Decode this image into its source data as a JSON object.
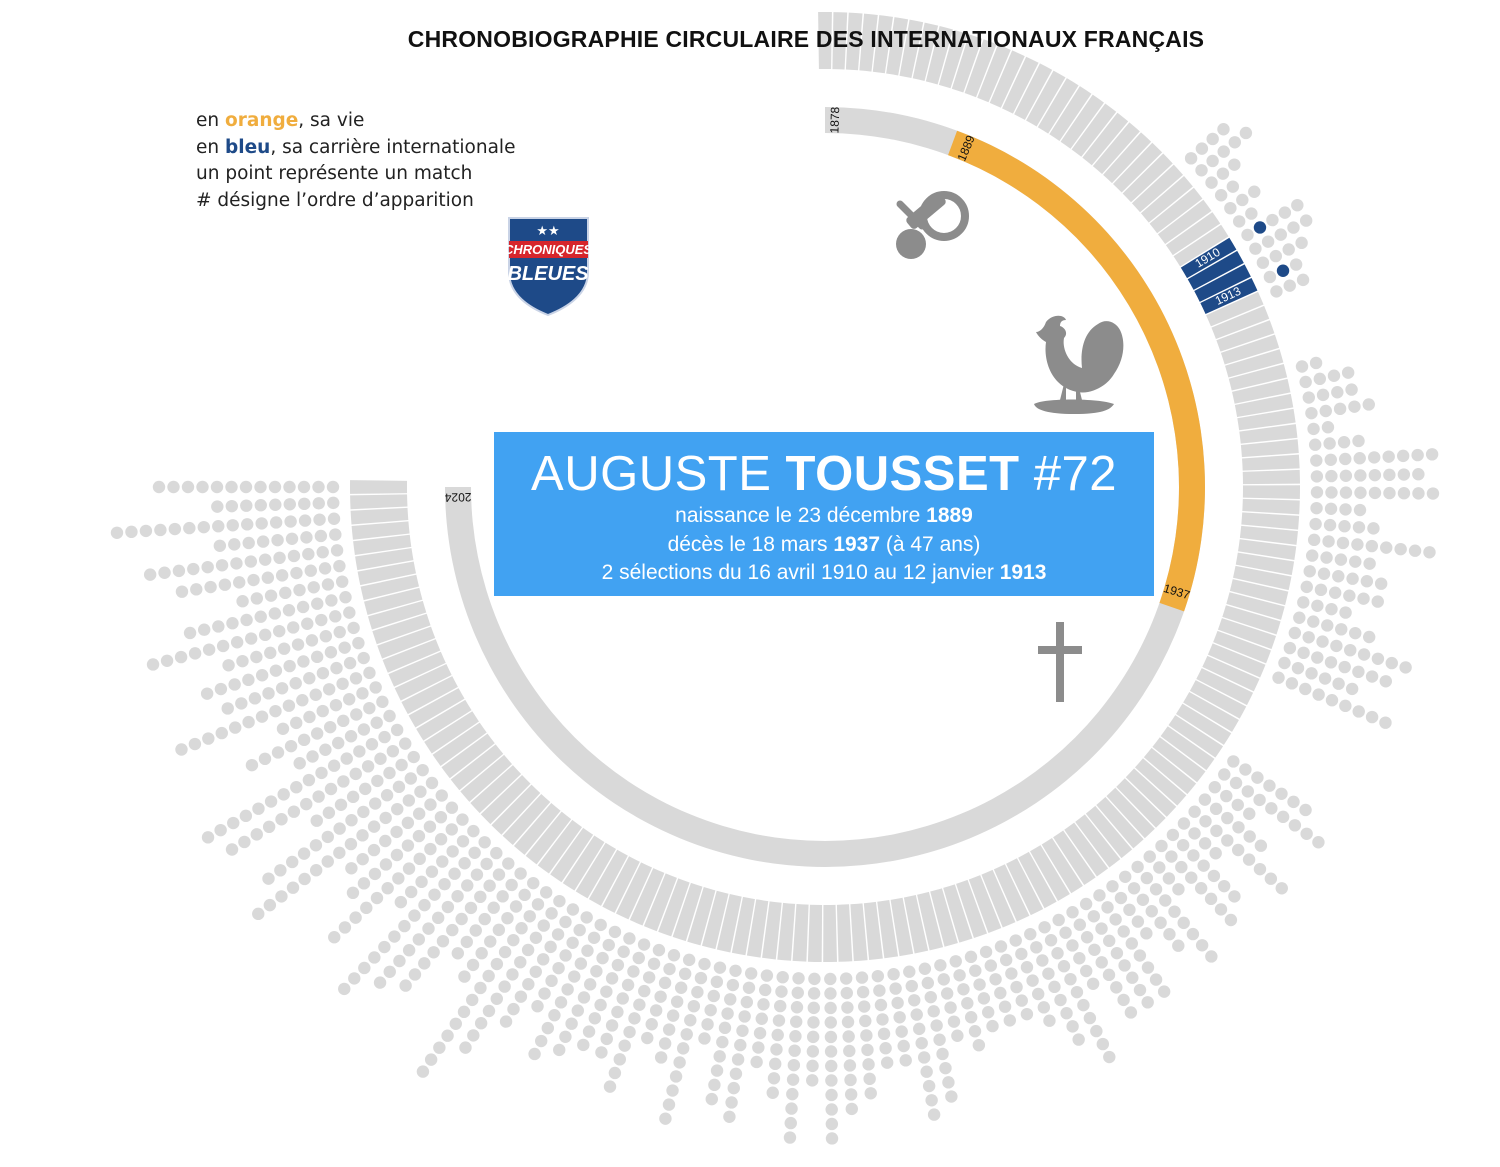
{
  "title": "CHRONOBIOGRAPHIE CIRCULAIRE DES INTERNATIONAUX FRANÇAIS",
  "legend": {
    "line1_prefix": "en ",
    "line1_color": "orange",
    "line1_suffix": ", sa vie",
    "line2_prefix": "en ",
    "line2_color": "bleu",
    "line2_suffix": ", sa carrière internationale",
    "line3": "un point représente un match",
    "line4": "# désigne l’ordre d’apparition"
  },
  "logo": {
    "line1": "CHRONIQUES",
    "line2": "BLEUES",
    "stars": "★★"
  },
  "player": {
    "first_name": "AUGUSTE",
    "last_name": "TOUSSET",
    "order": "#72",
    "birth_prefix": "naissance le  23 décembre ",
    "birth_year": "1889",
    "death_prefix": "décès le 18 mars ",
    "death_year": "1937",
    "death_suffix": " (à 47 ans)",
    "caps_prefix": "2 sélections  du 16 avril 1910 au 12 janvier ",
    "caps_last_year": "1913"
  },
  "timeline": {
    "start_year": 1878,
    "end_year": 2024,
    "birth_year": 1889,
    "death_year": 1937,
    "career_start_year": 1910,
    "career_end_year": 1913,
    "labels": {
      "start": "1878",
      "end": "2024",
      "birth": "1889",
      "death": "1937",
      "career_start": "1910",
      "career_end": "1913"
    }
  },
  "colors": {
    "life": "#f0ad3e",
    "career": "#1e4a88",
    "neutral": "#d9d9d9",
    "banner": "#41a2f2",
    "icons": "#8c8c8c"
  },
  "icons": [
    "pacifier-icon",
    "rooster-icon",
    "cross-icon",
    "shield-logo-icon"
  ],
  "player_matches": [
    {
      "date": "16 avril 1910",
      "year": 1910
    },
    {
      "date": "12 janvier 1913",
      "year": 1913
    }
  ]
}
